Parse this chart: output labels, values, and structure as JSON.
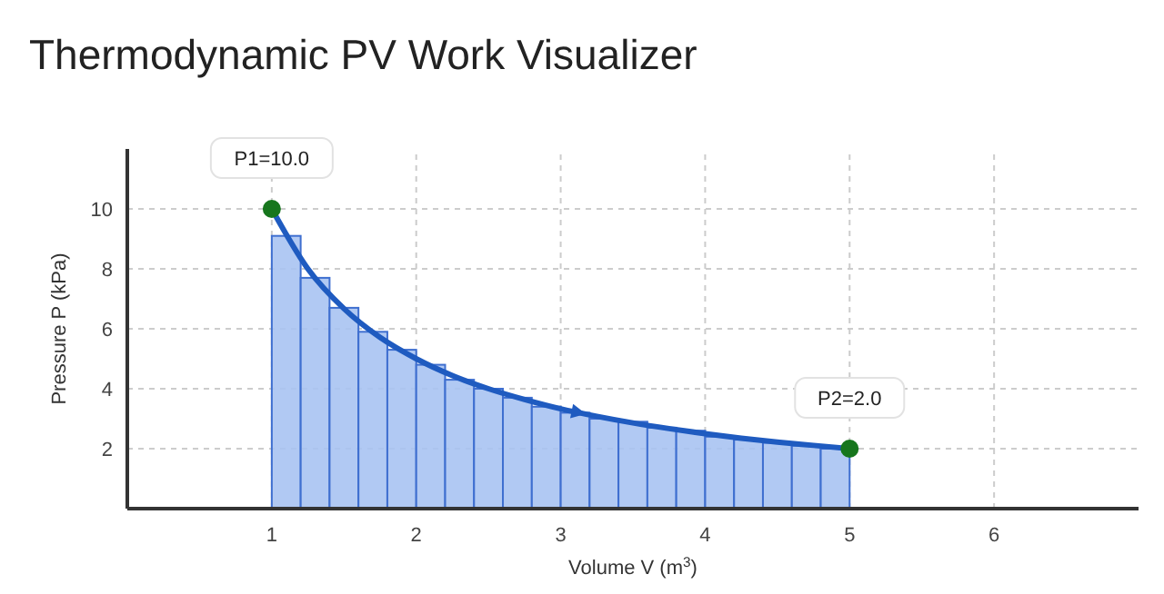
{
  "chart_data": {
    "type": "histogram",
    "title": "Thermodynamic PV Work Visualizer",
    "xlabel": "Volume V (m$^{3}$)",
    "ylabel": "Pressure P (kPa)",
    "xlim": [
      0,
      7
    ],
    "xticks": [
      1,
      2,
      3,
      4,
      5,
      6
    ],
    "ylim": [
      0,
      12
    ],
    "yticks": [
      2,
      4,
      6,
      8,
      10
    ],
    "grid": true,
    "series": [
      {
        "color": "#a9c3f2",
        "bins": [
          1,
          1.2,
          1.4,
          1.6,
          1.8,
          2,
          2.2,
          2.4,
          2.6,
          2.8,
          3,
          3.2,
          3.4,
          3.6,
          3.8,
          4,
          4.2,
          4.4,
          4.6,
          4.8,
          5
        ],
        "values": [
          9.1,
          7.7,
          6.7,
          5.9,
          5.3,
          4.8,
          4.3,
          4.0,
          3.7,
          3.4,
          3.2,
          3.0,
          2.9,
          2.7,
          2.6,
          2.4,
          2.3,
          2.2,
          2.1,
          2.0
        ]
      },
      {
        "type": "line",
        "color": "#1f5bc0",
        "x": [
          1,
          1.25,
          1.5,
          1.75,
          2,
          2.25,
          2.5,
          2.75,
          3,
          3.25,
          3.5,
          3.75,
          4,
          4.25,
          4.5,
          4.75,
          5
        ],
        "values": [
          10,
          8,
          6.67,
          5.71,
          5,
          4.44,
          4,
          3.64,
          3.33,
          3.08,
          2.86,
          2.67,
          2.5,
          2.35,
          2.22,
          2.11,
          2
        ]
      },
      {
        "type": "scatter",
        "color": "#17761d",
        "marker": "circle",
        "x": [
          1,
          5
        ],
        "values": [
          10,
          2
        ]
      }
    ],
    "annotations": [
      {
        "text": "P1=10.0",
        "x": 1,
        "y": 10
      },
      {
        "text": "P2=2.0",
        "x": 5,
        "y": 2
      }
    ]
  }
}
